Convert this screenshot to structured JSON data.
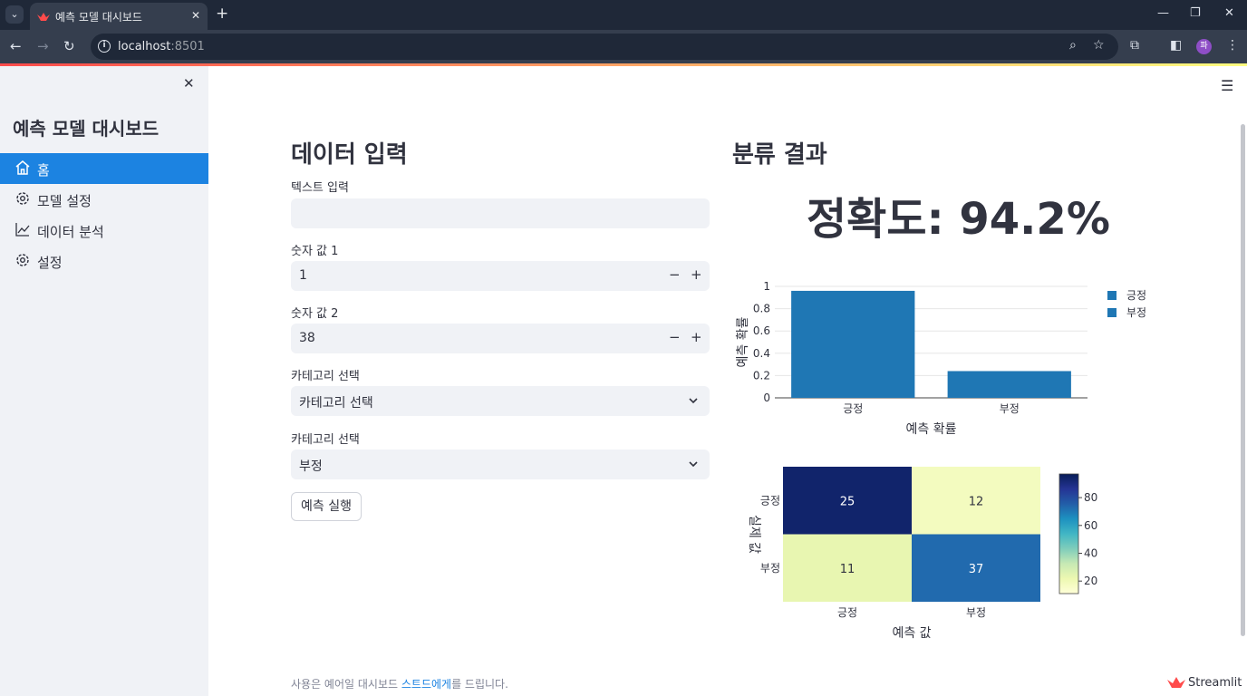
{
  "browser": {
    "tab_title": "예측 모델 대시보드",
    "url_host": "localhost",
    "url_port": ":8501",
    "avatar_initial": "파"
  },
  "sidebar": {
    "title": "예측 모델 대시보드",
    "items": [
      {
        "label": "홈",
        "icon": "home-icon",
        "active": true
      },
      {
        "label": "모델 설정",
        "icon": "gear-icon",
        "active": false
      },
      {
        "label": "데이터 분석",
        "icon": "line-chart-icon",
        "active": false
      },
      {
        "label": "설정",
        "icon": "gear-icon",
        "active": false
      }
    ]
  },
  "input_section": {
    "title": "데이터 입력",
    "text_label": "텍스트 입력",
    "text_value": "",
    "num1_label": "숫자 값 1",
    "num1_value": "1",
    "num2_label": "숫자 값 2",
    "num2_value": "38",
    "cat1_label": "카테고리 선택",
    "cat1_value": "카테고리 선택",
    "cat2_label": "카테고리 선택",
    "cat2_value": "부정",
    "run_button": "예측 실행",
    "minus": "−",
    "plus": "+"
  },
  "result_section": {
    "title": "분류 결과",
    "accuracy": "정확도: 94.2%"
  },
  "chart_data": [
    {
      "type": "bar",
      "categories": [
        "긍정",
        "부정"
      ],
      "values": [
        0.96,
        0.24
      ],
      "ylabel": "예측 확률",
      "xlabel": "예측 확률",
      "ylim": [
        0,
        1
      ],
      "yticks": [
        "0",
        "0.2",
        "0.4",
        "0.6",
        "0.8",
        "1"
      ],
      "legend": [
        "긍정",
        "부정"
      ],
      "legend_placement": "top-right",
      "grid": true,
      "color": "#1f77b4"
    },
    {
      "type": "heatmap",
      "x_categories": [
        "긍정",
        "부정"
      ],
      "y_categories": [
        "긍정",
        "부정"
      ],
      "values": [
        [
          25,
          12
        ],
        [
          11,
          37
        ]
      ],
      "xlabel": "예측 값",
      "ylabel": "실제 값",
      "colorbar_ticks": [
        "20",
        "40",
        "60",
        "80"
      ],
      "colorscale": "YlGnBu"
    }
  ],
  "footer": {
    "prefix": "사용은 예어일 대시보드 ",
    "link": "스트드에게",
    "suffix": "를 드립니다."
  },
  "brand": "Streamlit"
}
